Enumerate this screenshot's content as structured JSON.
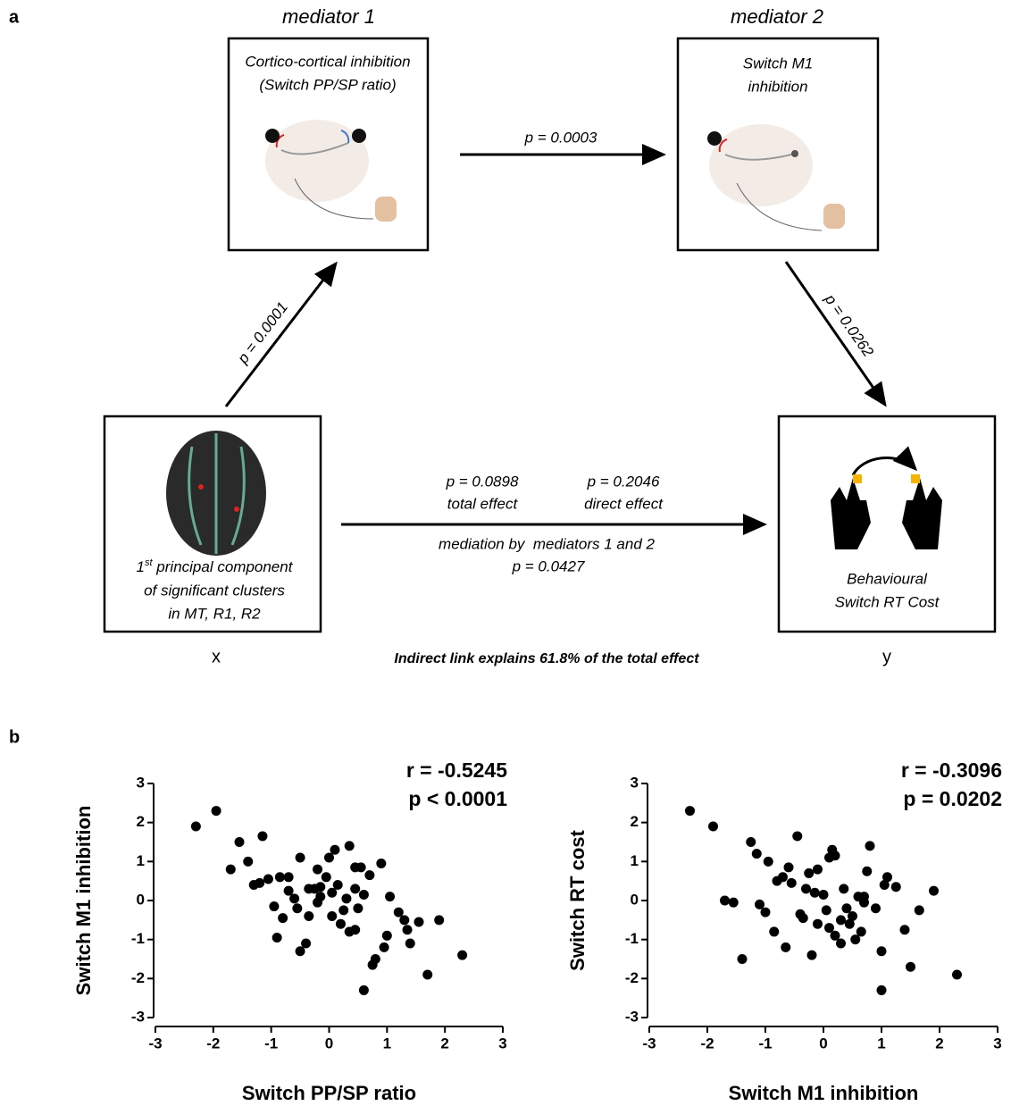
{
  "panel_labels": [
    "a",
    "b"
  ],
  "diagram": {
    "mediator_1": {
      "heading": "mediator 1",
      "lines": [
        "Cortico-cortical inhibition",
        "(Switch PP/SP ratio)"
      ]
    },
    "mediator_2": {
      "heading": "mediator 2",
      "lines": [
        "Switch M1",
        "inhibition"
      ]
    },
    "x_box": {
      "ordinal": "1",
      "ordinal_suffix": "st",
      "lines": [
        "principal component",
        "of significant clusters",
        "in MT, R1, R2"
      ],
      "caption": "x"
    },
    "y_box": {
      "lines": [
        "Behavioural",
        "Switch RT Cost"
      ],
      "caption": "y"
    },
    "edges": {
      "x_to_m1": "p = 0.0001",
      "m1_to_m2": "p = 0.0003",
      "m2_to_y": "p = 0.0262"
    },
    "direct": {
      "total_p": "p = 0.0898",
      "total_label": "total effect",
      "direct_p": "p = 0.2046",
      "direct_label": "direct effect",
      "mediation_label": "mediation by  mediators 1 and 2",
      "mediation_p": "p = 0.0427"
    },
    "footnote": "Indirect link explains 61.8% of the total effect"
  },
  "chart_data": [
    {
      "type": "scatter",
      "color": "#000000",
      "xlabel": "Switch PP/SP ratio",
      "ylabel": "Switch M1 inhibition",
      "annotations": [
        "r = -0.5245",
        "p < 0.0001"
      ],
      "xlim": [
        -3,
        3
      ],
      "ylim": [
        -3,
        3
      ],
      "xticks": [
        -3,
        -2,
        -1,
        0,
        1,
        2,
        3
      ],
      "yticks": [
        -3,
        -2,
        -1,
        0,
        1,
        2,
        3
      ],
      "x": [
        -2.3,
        -1.95,
        -1.55,
        -1.7,
        -1.4,
        -1.15,
        -1.3,
        -1.2,
        -1.05,
        -0.85,
        -0.95,
        -0.9,
        -0.8,
        -0.7,
        -0.7,
        -0.6,
        -0.55,
        -0.5,
        -0.4,
        -0.35,
        -0.35,
        -0.25,
        -0.2,
        -0.15,
        -0.15,
        -0.05,
        -0.5,
        -0.2,
        0.0,
        0.05,
        0.05,
        0.1,
        0.15,
        0.2,
        0.25,
        0.3,
        0.35,
        0.35,
        0.45,
        0.45,
        0.5,
        0.45,
        0.55,
        0.6,
        0.6,
        0.7,
        0.75,
        0.8,
        0.9,
        0.95,
        1.0,
        1.05,
        1.2,
        1.3,
        1.35,
        1.4,
        1.55,
        1.7,
        1.9,
        2.3
      ],
      "values": [
        1.9,
        2.3,
        1.5,
        0.8,
        1.0,
        1.65,
        0.4,
        0.45,
        0.55,
        0.6,
        -0.15,
        -0.95,
        -0.45,
        0.6,
        0.25,
        0.05,
        -0.2,
        -1.3,
        -1.1,
        -0.4,
        0.3,
        0.3,
        -0.05,
        0.35,
        0.1,
        0.6,
        1.1,
        0.8,
        1.1,
        0.2,
        -0.4,
        1.3,
        0.4,
        -0.6,
        -0.25,
        0.05,
        1.4,
        -0.8,
        0.85,
        0.3,
        -0.2,
        -0.75,
        0.85,
        -2.3,
        0.15,
        0.65,
        -1.65,
        -1.5,
        0.95,
        -1.2,
        -0.9,
        0.1,
        -0.3,
        -0.5,
        -0.75,
        -1.1,
        -0.55,
        -1.9,
        -0.5,
        -1.4
      ]
    },
    {
      "type": "scatter",
      "color": "#000000",
      "xlabel": "Switch M1 inhibition",
      "ylabel": "Switch RT cost",
      "annotations": [
        "r = -0.3096",
        "p = 0.0202"
      ],
      "xlim": [
        -3,
        3
      ],
      "ylim": [
        -3,
        3
      ],
      "xticks": [
        -3,
        -2,
        -1,
        0,
        1,
        2,
        3
      ],
      "yticks": [
        -3,
        -2,
        -1,
        0,
        1,
        2,
        3
      ],
      "x": [
        -2.3,
        -1.9,
        -1.7,
        -1.55,
        -1.4,
        -1.25,
        -1.15,
        -1.1,
        -1.0,
        -0.95,
        -0.85,
        -0.8,
        -0.7,
        -0.65,
        -0.6,
        -0.55,
        -0.45,
        -0.4,
        -0.35,
        -0.3,
        -0.25,
        -0.2,
        -0.15,
        -0.1,
        -0.1,
        0.0,
        0.05,
        0.1,
        0.1,
        0.15,
        0.2,
        0.2,
        0.3,
        0.3,
        0.35,
        0.4,
        0.45,
        0.5,
        0.55,
        0.6,
        0.65,
        0.7,
        0.75,
        0.8,
        0.9,
        1.0,
        1.0,
        1.05,
        1.1,
        1.25,
        1.4,
        1.5,
        1.65,
        1.9,
        2.3,
        0.7
      ],
      "values": [
        2.3,
        1.9,
        0.0,
        -0.05,
        -1.5,
        1.5,
        1.2,
        -0.1,
        -0.3,
        1.0,
        -0.8,
        0.5,
        0.6,
        -1.2,
        0.85,
        0.45,
        1.65,
        -0.35,
        -0.45,
        0.3,
        0.7,
        -1.4,
        0.2,
        -0.6,
        0.8,
        0.15,
        -0.25,
        -0.7,
        1.1,
        1.3,
        -0.9,
        1.15,
        -0.5,
        -1.1,
        0.3,
        -0.2,
        -0.6,
        -0.4,
        -1.0,
        0.1,
        -0.8,
        0.1,
        0.75,
        1.4,
        -0.2,
        -1.3,
        -2.3,
        0.4,
        0.6,
        0.35,
        -0.75,
        -1.7,
        -0.25,
        0.25,
        -1.9,
        -0.05
      ]
    }
  ]
}
